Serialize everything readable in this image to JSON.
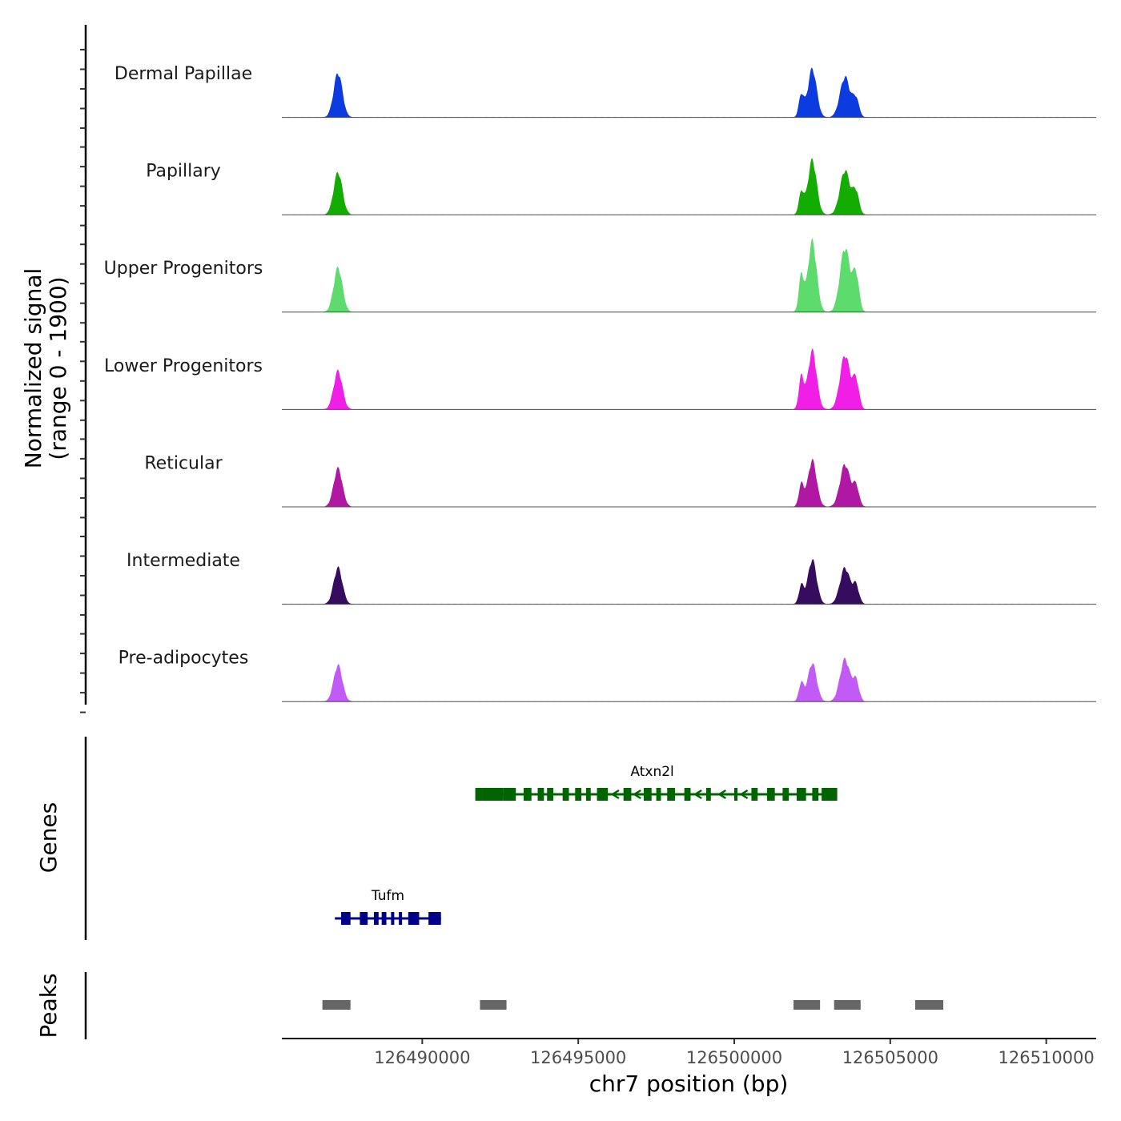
{
  "chart_data": {
    "type": "area",
    "chromosome": "chr7",
    "x_range": [
      126485500,
      126511600
    ],
    "x_axis": {
      "label": "chr7 position (bp)",
      "ticks": [
        126490000,
        126495000,
        126500000,
        126505000,
        126510000
      ],
      "tick_labels": [
        "126490000",
        "126495000",
        "126500000",
        "126505000",
        "126510000"
      ]
    },
    "y_axis": {
      "label_line1": "Normalized signal",
      "label_line2": "(range 0 - 1900)",
      "range": [
        0,
        1900
      ]
    },
    "coverage_tracks": [
      {
        "name": "Dermal Papillae",
        "color": "#0c3be0",
        "peaks": [
          {
            "center": 126487300,
            "height": 1100,
            "width": 140
          },
          {
            "center": 126502500,
            "height": 1200,
            "width": 140
          },
          {
            "center": 126502150,
            "height": 550,
            "width": 80
          },
          {
            "center": 126503550,
            "height": 1000,
            "width": 160
          },
          {
            "center": 126503900,
            "height": 450,
            "width": 100
          }
        ]
      },
      {
        "name": "Papillary",
        "color": "#12ad00",
        "peaks": [
          {
            "center": 126487300,
            "height": 1050,
            "width": 140
          },
          {
            "center": 126502500,
            "height": 1350,
            "width": 140
          },
          {
            "center": 126502150,
            "height": 550,
            "width": 80
          },
          {
            "center": 126503550,
            "height": 1100,
            "width": 160
          },
          {
            "center": 126503900,
            "height": 550,
            "width": 100
          }
        ]
      },
      {
        "name": "Upper Progenitors",
        "color": "#5ddb6c",
        "peaks": [
          {
            "center": 126487300,
            "height": 1100,
            "width": 140
          },
          {
            "center": 126502500,
            "height": 1750,
            "width": 140
          },
          {
            "center": 126502150,
            "height": 900,
            "width": 80
          },
          {
            "center": 126503550,
            "height": 1600,
            "width": 160
          },
          {
            "center": 126503900,
            "height": 900,
            "width": 100
          }
        ]
      },
      {
        "name": "Lower Progenitors",
        "color": "#f01ee6",
        "peaks": [
          {
            "center": 126487300,
            "height": 950,
            "width": 140
          },
          {
            "center": 126502500,
            "height": 1450,
            "width": 140
          },
          {
            "center": 126502150,
            "height": 800,
            "width": 80
          },
          {
            "center": 126503550,
            "height": 1350,
            "width": 160
          },
          {
            "center": 126503900,
            "height": 700,
            "width": 100
          }
        ]
      },
      {
        "name": "Reticular",
        "color": "#b017a2",
        "peaks": [
          {
            "center": 126487300,
            "height": 950,
            "width": 140
          },
          {
            "center": 126502500,
            "height": 1150,
            "width": 140
          },
          {
            "center": 126502150,
            "height": 550,
            "width": 80
          },
          {
            "center": 126503550,
            "height": 1050,
            "width": 160
          },
          {
            "center": 126503900,
            "height": 500,
            "width": 100
          }
        ]
      },
      {
        "name": "Intermediate",
        "color": "#360c5e",
        "peaks": [
          {
            "center": 126487300,
            "height": 900,
            "width": 140
          },
          {
            "center": 126502500,
            "height": 1100,
            "width": 140
          },
          {
            "center": 126502150,
            "height": 450,
            "width": 80
          },
          {
            "center": 126503550,
            "height": 900,
            "width": 160
          },
          {
            "center": 126503900,
            "height": 450,
            "width": 100
          }
        ]
      },
      {
        "name": "Pre-adipocytes",
        "color": "#c25af5",
        "peaks": [
          {
            "center": 126487300,
            "height": 900,
            "width": 140
          },
          {
            "center": 126502500,
            "height": 950,
            "width": 140
          },
          {
            "center": 126502150,
            "height": 450,
            "width": 80
          },
          {
            "center": 126503550,
            "height": 1050,
            "width": 160
          },
          {
            "center": 126503900,
            "height": 500,
            "width": 100
          }
        ]
      }
    ],
    "genes_panel": {
      "label": "Genes",
      "genes": [
        {
          "name": "Atxn2l",
          "color": "#006400",
          "strand": "-",
          "start": 126491700,
          "end": 126503300,
          "exons": [
            [
              126491700,
              126492600
            ],
            [
              126492600,
              126493000
            ],
            [
              126493250,
              126493500
            ],
            [
              126493700,
              126493900
            ],
            [
              126494000,
              126494200
            ],
            [
              126494500,
              126494700
            ],
            [
              126494900,
              126495100
            ],
            [
              126495250,
              126495400
            ],
            [
              126495600,
              126495950
            ],
            [
              126496450,
              126496700
            ],
            [
              126497100,
              126497350
            ],
            [
              126497500,
              126497650
            ],
            [
              126497850,
              126498100
            ],
            [
              126498400,
              126498600
            ],
            [
              126499100,
              126499250
            ],
            [
              126500000,
              126500100
            ],
            [
              126500550,
              126500750
            ],
            [
              126501050,
              126501300
            ],
            [
              126501550,
              126501750
            ],
            [
              126502000,
              126502300
            ],
            [
              126502500,
              126502700
            ],
            [
              126502800,
              126503300
            ]
          ]
        },
        {
          "name": "Tufm",
          "color": "#00008b",
          "strand": "+",
          "start": 126487200,
          "end": 126490600,
          "exons": [
            [
              126487400,
              126487700
            ],
            [
              126488000,
              126488250
            ],
            [
              126488450,
              126488600
            ],
            [
              126488700,
              126488850
            ],
            [
              126489000,
              126489100
            ],
            [
              126489250,
              126489350
            ],
            [
              126489550,
              126489900
            ],
            [
              126490200,
              126490600
            ]
          ]
        }
      ]
    },
    "peaks_panel": {
      "label": "Peaks",
      "color": "#666666",
      "regions": [
        [
          126486800,
          126487700
        ],
        [
          126491850,
          126492700
        ],
        [
          126501900,
          126502750
        ],
        [
          126503200,
          126504050
        ],
        [
          126505800,
          126506700
        ]
      ]
    }
  }
}
